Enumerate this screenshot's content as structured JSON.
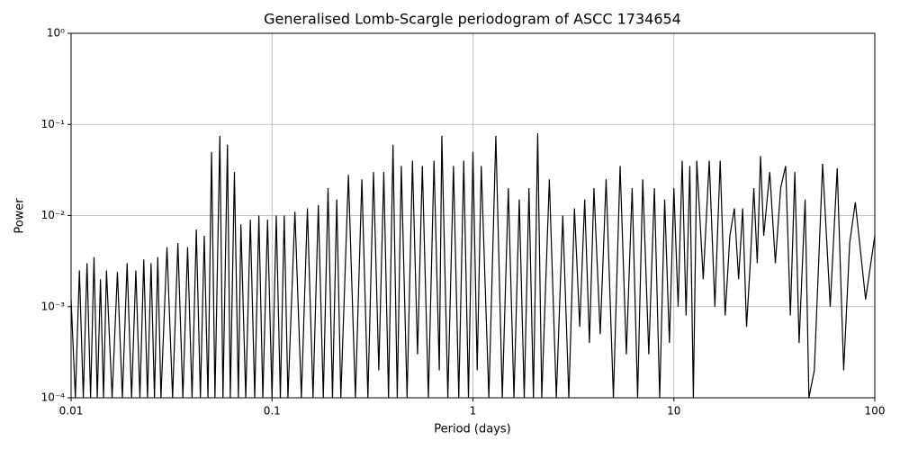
{
  "chart_data": {
    "type": "line",
    "title": "Generalised Lomb-Scargle periodogram of ASCC 1734654",
    "x_label": "Period (days)",
    "y_label": "Power",
    "log_x": true,
    "log_y": true,
    "grid": true,
    "color": "#000000",
    "xlim": [
      0.01,
      100
    ],
    "ylim": [
      0.0001,
      1
    ],
    "xticks": [
      0.01,
      0.1,
      1,
      10,
      100
    ],
    "yticks": [
      {
        "value": 0.0001,
        "label": "10⁻⁴"
      },
      {
        "value": 0.001,
        "label": "10⁻³"
      },
      {
        "value": 0.01,
        "label": "10⁻²"
      },
      {
        "value": 0.1,
        "label": "10⁻¹"
      },
      {
        "value": 1,
        "label": "10⁰"
      }
    ],
    "x": [
      0.01,
      0.0105,
      0.011,
      0.0115,
      0.012,
      0.0125,
      0.013,
      0.0135,
      0.014,
      0.0145,
      0.015,
      0.016,
      0.017,
      0.018,
      0.019,
      0.02,
      0.021,
      0.022,
      0.023,
      0.024,
      0.025,
      0.026,
      0.027,
      0.028,
      0.03,
      0.032,
      0.034,
      0.036,
      0.038,
      0.04,
      0.042,
      0.044,
      0.046,
      0.048,
      0.05,
      0.052,
      0.055,
      0.057,
      0.06,
      0.062,
      0.065,
      0.068,
      0.07,
      0.074,
      0.078,
      0.082,
      0.086,
      0.09,
      0.095,
      0.1,
      0.105,
      0.11,
      0.115,
      0.12,
      0.13,
      0.14,
      0.15,
      0.16,
      0.17,
      0.18,
      0.19,
      0.2,
      0.21,
      0.22,
      0.24,
      0.26,
      0.28,
      0.3,
      0.32,
      0.34,
      0.36,
      0.38,
      0.4,
      0.42,
      0.44,
      0.47,
      0.5,
      0.53,
      0.56,
      0.6,
      0.64,
      0.68,
      0.7,
      0.75,
      0.8,
      0.85,
      0.9,
      0.95,
      1.0,
      1.05,
      1.1,
      1.2,
      1.3,
      1.4,
      1.5,
      1.6,
      1.7,
      1.8,
      1.9,
      2.0,
      2.1,
      2.2,
      2.4,
      2.6,
      2.8,
      3.0,
      3.2,
      3.4,
      3.6,
      3.8,
      4.0,
      4.3,
      4.6,
      5.0,
      5.4,
      5.8,
      6.2,
      6.6,
      7.0,
      7.5,
      8.0,
      8.5,
      9.0,
      9.5,
      10,
      10.5,
      11,
      11.5,
      12,
      12.5,
      13,
      14,
      15,
      16,
      17,
      18,
      19,
      20,
      21,
      22,
      23,
      24,
      25,
      26,
      27,
      28,
      30,
      32,
      34,
      36,
      38,
      40,
      42,
      45,
      47,
      50,
      55,
      60,
      65,
      70,
      75,
      80,
      90,
      100
    ],
    "values": [
      0.0012,
      0.0001,
      0.0025,
      0.0001,
      0.003,
      0.0001,
      0.0035,
      0.0001,
      0.002,
      0.0001,
      0.0025,
      0.0001,
      0.0024,
      0.0001,
      0.003,
      0.0001,
      0.0025,
      0.0001,
      0.0033,
      0.0001,
      0.003,
      0.0001,
      0.0035,
      0.0001,
      0.0045,
      0.0001,
      0.005,
      0.0001,
      0.0045,
      0.0001,
      0.007,
      0.0001,
      0.006,
      0.0001,
      0.05,
      0.0001,
      0.075,
      0.0001,
      0.06,
      0.0001,
      0.03,
      0.0001,
      0.008,
      0.0001,
      0.009,
      0.0001,
      0.01,
      0.0001,
      0.009,
      0.0001,
      0.01,
      0.0001,
      0.01,
      0.0001,
      0.011,
      0.0001,
      0.012,
      0.0001,
      0.013,
      0.0001,
      0.02,
      0.0001,
      0.015,
      0.0001,
      0.028,
      0.0001,
      0.025,
      0.0001,
      0.03,
      0.0002,
      0.03,
      0.0001,
      0.06,
      0.0001,
      0.035,
      0.0001,
      0.04,
      0.0003,
      0.035,
      0.0001,
      0.04,
      0.0002,
      0.075,
      0.0001,
      0.035,
      0.0001,
      0.04,
      0.0001,
      0.05,
      0.0002,
      0.035,
      0.0001,
      0.075,
      0.0001,
      0.02,
      0.0001,
      0.015,
      0.0001,
      0.02,
      0.0001,
      0.08,
      0.0001,
      0.025,
      0.0001,
      0.01,
      0.0001,
      0.012,
      0.0006,
      0.015,
      0.0004,
      0.02,
      0.0005,
      0.025,
      0.0001,
      0.035,
      0.0003,
      0.02,
      0.0001,
      0.025,
      0.0003,
      0.02,
      0.0001,
      0.015,
      0.0004,
      0.02,
      0.001,
      0.04,
      0.0008,
      0.035,
      0.0001,
      0.04,
      0.002,
      0.04,
      0.001,
      0.04,
      0.0008,
      0.006,
      0.012,
      0.002,
      0.012,
      0.0006,
      0.003,
      0.02,
      0.003,
      0.045,
      0.006,
      0.03,
      0.003,
      0.02,
      0.035,
      0.0008,
      0.03,
      0.0004,
      0.015,
      0.0001,
      0.0002,
      0.037,
      0.001,
      0.033,
      0.0002,
      0.005,
      0.014,
      0.0012,
      0.006
    ]
  }
}
